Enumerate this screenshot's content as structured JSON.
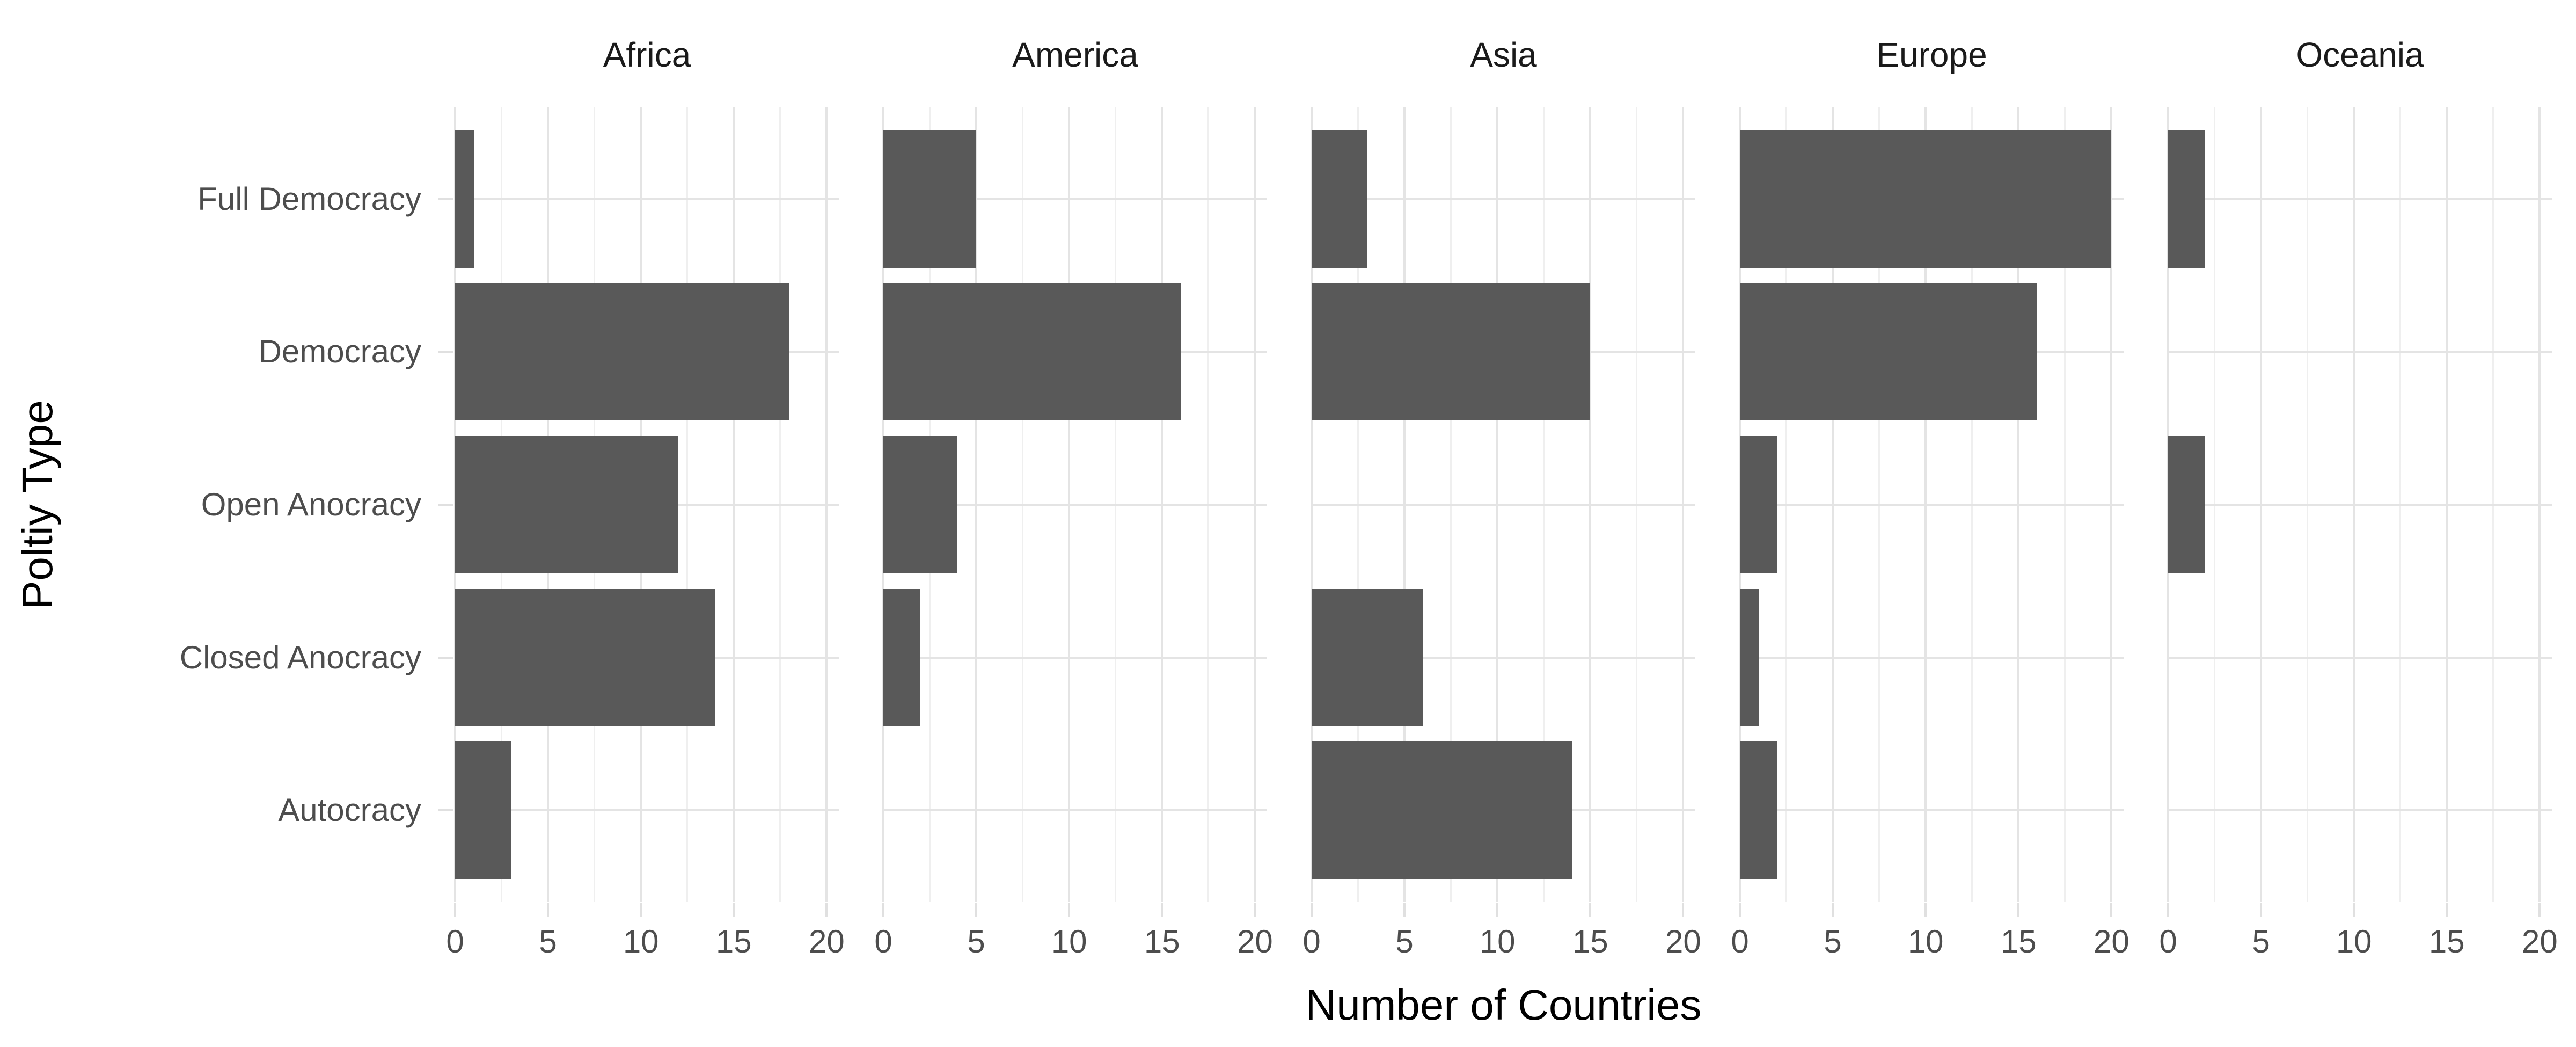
{
  "chart_data": {
    "type": "bar",
    "orientation": "horizontal",
    "title": "",
    "xlabel": "Number of Countries",
    "ylabel": "Poltiy Type",
    "facets": [
      "Africa",
      "America",
      "Asia",
      "Europe",
      "Oceania"
    ],
    "categories": [
      "Full Democracy",
      "Democracy",
      "Open Anocracy",
      "Closed Anocracy",
      "Autocracy"
    ],
    "series": [
      {
        "name": "Africa",
        "values": [
          1,
          18,
          12,
          14,
          3
        ]
      },
      {
        "name": "America",
        "values": [
          5,
          16,
          4,
          2,
          0
        ]
      },
      {
        "name": "Asia",
        "values": [
          3,
          15,
          0,
          6,
          14
        ]
      },
      {
        "name": "Europe",
        "values": [
          20,
          16,
          2,
          1,
          2
        ]
      },
      {
        "name": "Oceania",
        "values": [
          2,
          0,
          2,
          0,
          0
        ]
      }
    ],
    "x_major_ticks": [
      0,
      5,
      10,
      15,
      20
    ],
    "x_minor_ticks": [
      2.5,
      7.5,
      12.5,
      17.5
    ],
    "xlim": [
      0,
      20.65
    ],
    "grid": true,
    "legend": "none",
    "colors": {
      "bar_fill": "#595959",
      "grid_major": "#e4e4e4",
      "grid_minor": "#efefef",
      "axis_text": "#4d4d4d",
      "title_text": "#000000",
      "strip_text": "#1a1a1a",
      "background": "#ffffff"
    }
  }
}
